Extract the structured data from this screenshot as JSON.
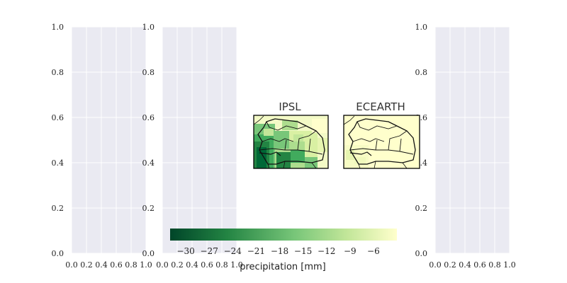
{
  "chart_data": [
    {
      "type": "heatmap",
      "title": "",
      "xlim": [
        0.0,
        1.0
      ],
      "ylim": [
        0.0,
        1.0
      ],
      "xticks": [
        "0.0",
        "0.2",
        "0.4",
        "0.6",
        "0.8",
        "1.0"
      ],
      "yticks": [
        "0.0",
        "0.2",
        "0.4",
        "0.6",
        "0.8",
        "1.0"
      ],
      "grid": true,
      "empty": true
    },
    {
      "type": "heatmap",
      "title": "",
      "xlim": [
        0.0,
        1.0
      ],
      "ylim": [
        0.0,
        1.0
      ],
      "xticks": [
        "0.0",
        "0.2",
        "0.4",
        "0.6",
        "0.8",
        "1.0"
      ],
      "yticks": [
        "0.0",
        "0.2",
        "0.4",
        "0.6",
        "0.8",
        "1.0"
      ],
      "grid": true,
      "empty": true
    },
    {
      "type": "heatmap",
      "title": "IPSL",
      "region": "Senegal",
      "note": "precipitation change map; dark green (strong negative) in south-west, fading to light yellow in north-east"
    },
    {
      "type": "heatmap",
      "title": "ECEARTH",
      "region": "Senegal",
      "note": "mostly light yellow (weak change) with slight green near south-west coast"
    },
    {
      "type": "heatmap",
      "title": "",
      "xlim": [
        0.0,
        1.0
      ],
      "ylim": [
        0.0,
        1.0
      ],
      "xticks": [
        "0.0",
        "0.2",
        "0.4",
        "0.6",
        "0.8",
        "1.0"
      ],
      "yticks": [
        "0.0",
        "0.2",
        "0.4",
        "0.6",
        "0.8",
        "1.0"
      ],
      "grid": true,
      "empty": true
    }
  ],
  "colorbar": {
    "label": "precipitation [mm]",
    "ticks": [
      "−30",
      "−27",
      "−24",
      "−21",
      "−18",
      "−15",
      "−12",
      "−9",
      "−6"
    ],
    "tick_values": [
      -30,
      -27,
      -24,
      -21,
      -18,
      -15,
      -12,
      -9,
      -6
    ],
    "range": [
      -32,
      -3
    ],
    "colormap": "YlGn_r",
    "colors": [
      "#004529",
      "#238443",
      "#78c679",
      "#c2e699",
      "#ffffcc"
    ]
  },
  "theme": {
    "panel_bg": "#eaeaf2",
    "grid": "#ffffff"
  }
}
